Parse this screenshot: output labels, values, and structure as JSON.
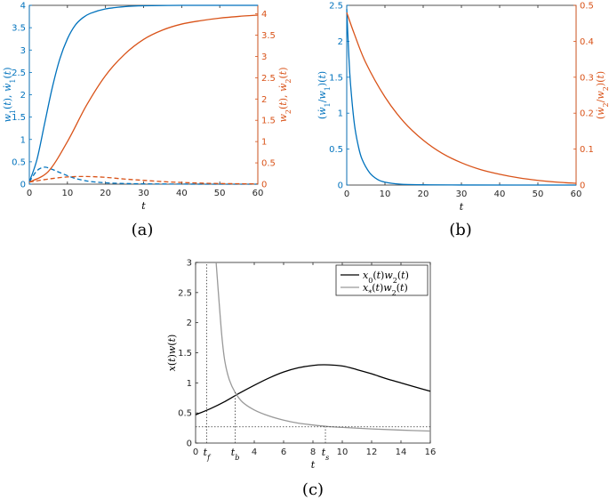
{
  "chart_data": [
    {
      "type": "line",
      "caption": "(a)",
      "xlabel": "t",
      "ylabel_left": "w1(t), ẇ1(t)",
      "ylabel_right": "w2(t), ẇ2(t)",
      "xlim": [
        0,
        60
      ],
      "ylim_left": [
        0,
        4
      ],
      "ylim_right": [
        0,
        4.2
      ],
      "xticks": [
        0,
        10,
        20,
        30,
        40,
        50,
        60
      ],
      "yticks_left": [
        0,
        0.5,
        1,
        1.5,
        2,
        2.5,
        3,
        3.5,
        4
      ],
      "yticks_right": [
        0,
        0.5,
        1,
        1.5,
        2,
        2.5,
        3,
        3.5,
        4
      ],
      "grid": false,
      "series": [
        {
          "axis": "left",
          "style": "solid",
          "color": "#0072BD",
          "x": [
            0,
            2,
            4,
            6,
            8,
            10,
            12,
            14,
            16,
            20,
            25,
            30,
            40,
            50,
            60
          ],
          "y": [
            0.05,
            0.55,
            1.35,
            2.15,
            2.8,
            3.25,
            3.55,
            3.72,
            3.82,
            3.92,
            3.97,
            3.99,
            4.0,
            4.0,
            4.0
          ]
        },
        {
          "axis": "left",
          "style": "dashed",
          "color": "#0072BD",
          "x": [
            0,
            2,
            4,
            6,
            8,
            10,
            12,
            14,
            16,
            20,
            25,
            30,
            40,
            50,
            60
          ],
          "y": [
            0.05,
            0.3,
            0.38,
            0.33,
            0.26,
            0.19,
            0.13,
            0.09,
            0.06,
            0.03,
            0.015,
            0.007,
            0.002,
            0.0,
            0.0
          ]
        },
        {
          "axis": "right",
          "style": "solid",
          "color": "#D95319",
          "x": [
            0,
            5,
            10,
            15,
            20,
            25,
            30,
            35,
            40,
            45,
            50,
            55,
            60
          ],
          "y": [
            0.05,
            0.3,
            1.0,
            1.85,
            2.55,
            3.05,
            3.4,
            3.62,
            3.76,
            3.84,
            3.9,
            3.94,
            3.97
          ]
        },
        {
          "axis": "right",
          "style": "dashed",
          "color": "#D95319",
          "x": [
            0,
            5,
            10,
            15,
            20,
            25,
            30,
            35,
            40,
            45,
            50,
            55,
            60
          ],
          "y": [
            0.05,
            0.12,
            0.17,
            0.18,
            0.16,
            0.12,
            0.09,
            0.06,
            0.04,
            0.025,
            0.015,
            0.01,
            0.005
          ]
        }
      ]
    },
    {
      "type": "line",
      "caption": "(b)",
      "xlabel": "t",
      "ylabel_left": "(ẇ1/w1)(t)",
      "ylabel_right": "(ẇ2/w2)(t)",
      "xlim": [
        0,
        60
      ],
      "ylim_left": [
        0,
        2.5
      ],
      "ylim_right": [
        0,
        0.5
      ],
      "xticks": [
        0,
        10,
        20,
        30,
        40,
        50,
        60
      ],
      "yticks_left": [
        0,
        0.5,
        1,
        1.5,
        2,
        2.5
      ],
      "yticks_right": [
        0,
        0.1,
        0.2,
        0.3,
        0.4,
        0.5
      ],
      "grid": false,
      "series": [
        {
          "axis": "left",
          "style": "solid",
          "color": "#0072BD",
          "x": [
            0,
            0.5,
            1,
            2,
            3,
            4,
            6,
            8,
            10,
            14,
            20,
            30,
            60
          ],
          "y": [
            2.45,
            1.85,
            1.4,
            0.85,
            0.55,
            0.36,
            0.17,
            0.08,
            0.04,
            0.012,
            0.004,
            0.001,
            0.0
          ]
        },
        {
          "axis": "right",
          "style": "solid",
          "color": "#D95319",
          "x": [
            0,
            2,
            5,
            10,
            15,
            20,
            25,
            30,
            35,
            40,
            45,
            50,
            55,
            60
          ],
          "y": [
            0.48,
            0.42,
            0.34,
            0.245,
            0.175,
            0.125,
            0.088,
            0.062,
            0.043,
            0.03,
            0.02,
            0.013,
            0.008,
            0.005
          ]
        }
      ]
    },
    {
      "type": "line",
      "caption": "(c)",
      "xlabel": "t",
      "ylabel": "x(t)w(t)",
      "xlim": [
        0,
        16
      ],
      "ylim": [
        0,
        3
      ],
      "xticks": [
        0,
        4,
        6,
        8,
        10,
        12,
        14,
        16
      ],
      "yticks": [
        0,
        0.5,
        1,
        1.5,
        2,
        2.5,
        3
      ],
      "grid": false,
      "legend_position": "top-right",
      "special_xticks": [
        {
          "label": "t_f",
          "sub": "f",
          "x": 0.75
        },
        {
          "label": "t_b",
          "sub": "b",
          "x": 2.7
        },
        {
          "label": "t_s",
          "sub": "s",
          "x": 8.85
        }
      ],
      "hline_y": 0.27,
      "series": [
        {
          "name": "x0(t)w2(t)",
          "color": "#000000",
          "x": [
            0,
            1,
            2,
            3,
            4,
            5,
            6,
            7,
            8,
            8.8,
            10,
            11,
            12,
            13,
            14,
            15,
            16
          ],
          "y": [
            0.47,
            0.57,
            0.69,
            0.83,
            0.96,
            1.08,
            1.18,
            1.25,
            1.29,
            1.3,
            1.28,
            1.22,
            1.15,
            1.07,
            1.0,
            0.93,
            0.86
          ]
        },
        {
          "name": "x*(t)w2(t)",
          "color": "#999999",
          "x": [
            1.4,
            1.6,
            1.8,
            2.0,
            2.3,
            2.7,
            3.2,
            4,
            5,
            6,
            7,
            8,
            9,
            10,
            12,
            14,
            16
          ],
          "y": [
            3.0,
            2.35,
            1.75,
            1.35,
            1.05,
            0.84,
            0.68,
            0.55,
            0.45,
            0.38,
            0.33,
            0.3,
            0.275,
            0.26,
            0.235,
            0.215,
            0.2
          ]
        }
      ]
    }
  ]
}
